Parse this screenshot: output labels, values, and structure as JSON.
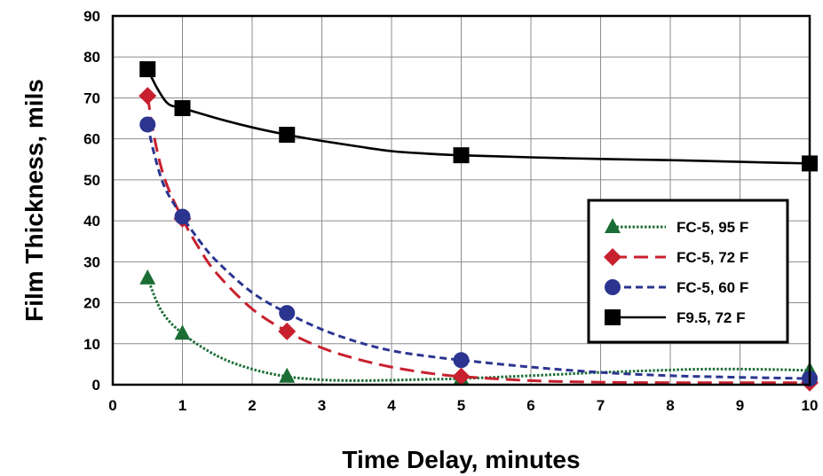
{
  "chart_data": {
    "type": "line",
    "xlabel": "Time Delay, minutes",
    "ylabel": "Film Thickness, mils",
    "xlim": [
      0,
      10
    ],
    "ylim": [
      0,
      90
    ],
    "xticks": [
      0,
      1,
      2,
      3,
      4,
      5,
      6,
      7,
      8,
      9,
      10
    ],
    "yticks": [
      0,
      10,
      20,
      30,
      40,
      50,
      60,
      70,
      80,
      90
    ],
    "grid": true,
    "legend_position": "right-middle",
    "series": [
      {
        "name": "FC-5, 95 F",
        "marker": "triangle",
        "line_style": "dotted",
        "color": "#1a6e35",
        "x": [
          0.5,
          1,
          2.5,
          5,
          10
        ],
        "y": [
          26,
          12.5,
          2,
          1.5,
          3.5
        ],
        "curve_x": [
          0.5,
          0.7,
          1,
          1.5,
          2,
          2.5,
          3,
          3.5,
          4,
          4.5,
          5,
          6,
          7,
          8,
          8.5,
          9,
          9.5,
          10
        ],
        "curve_y": [
          26,
          18,
          12.5,
          7,
          3.8,
          2,
          1.2,
          1,
          1.1,
          1.3,
          1.5,
          2.2,
          3,
          3.6,
          3.8,
          3.8,
          3.7,
          3.5
        ]
      },
      {
        "name": "FC-5, 72 F",
        "marker": "diamond",
        "line_style": "long-dash",
        "color": "#c8202e",
        "x": [
          0.5,
          1,
          2.5,
          5,
          10
        ],
        "y": [
          70.5,
          40.5,
          13,
          2,
          0.5
        ],
        "curve_x": [
          0.5,
          0.6,
          0.75,
          1,
          1.25,
          1.5,
          2,
          2.5,
          3,
          3.5,
          4,
          4.5,
          5,
          6,
          7,
          8,
          9,
          10
        ],
        "curve_y": [
          70.5,
          60,
          50,
          40.5,
          33,
          27,
          18.5,
          13,
          9,
          6.3,
          4.3,
          2.9,
          2,
          1,
          0.6,
          0.5,
          0.5,
          0.5
        ]
      },
      {
        "name": "FC-5, 60 F",
        "marker": "circle",
        "line_style": "short-dash",
        "color": "#2b3590",
        "x": [
          0.5,
          1,
          2.5,
          5,
          10
        ],
        "y": [
          63.5,
          41,
          17.5,
          6,
          1.5
        ],
        "curve_x": [
          0.5,
          0.6,
          0.75,
          1,
          1.25,
          1.5,
          2,
          2.5,
          3,
          3.5,
          4,
          4.5,
          5,
          6,
          7,
          8,
          9,
          10
        ],
        "curve_y": [
          63.5,
          56,
          48,
          41,
          35,
          30,
          22.5,
          17.5,
          13.5,
          10.5,
          8.3,
          7,
          6,
          4.3,
          3,
          2.2,
          1.8,
          1.5
        ]
      },
      {
        "name": "F9.5, 72 F",
        "marker": "square",
        "line_style": "solid",
        "color": "#000000",
        "x": [
          0.5,
          1,
          2.5,
          5,
          10
        ],
        "y": [
          77,
          67.5,
          61,
          56,
          54
        ],
        "curve_x": [
          0.5,
          0.65,
          0.8,
          1,
          1.5,
          2,
          2.5,
          3,
          3.5,
          4,
          4.5,
          5,
          6,
          7,
          8,
          9,
          10
        ],
        "curve_y": [
          77,
          72,
          68.5,
          67.5,
          65,
          62.8,
          61,
          59.5,
          58.2,
          57,
          56.4,
          56,
          55.5,
          55.1,
          54.8,
          54.4,
          54
        ]
      }
    ]
  }
}
